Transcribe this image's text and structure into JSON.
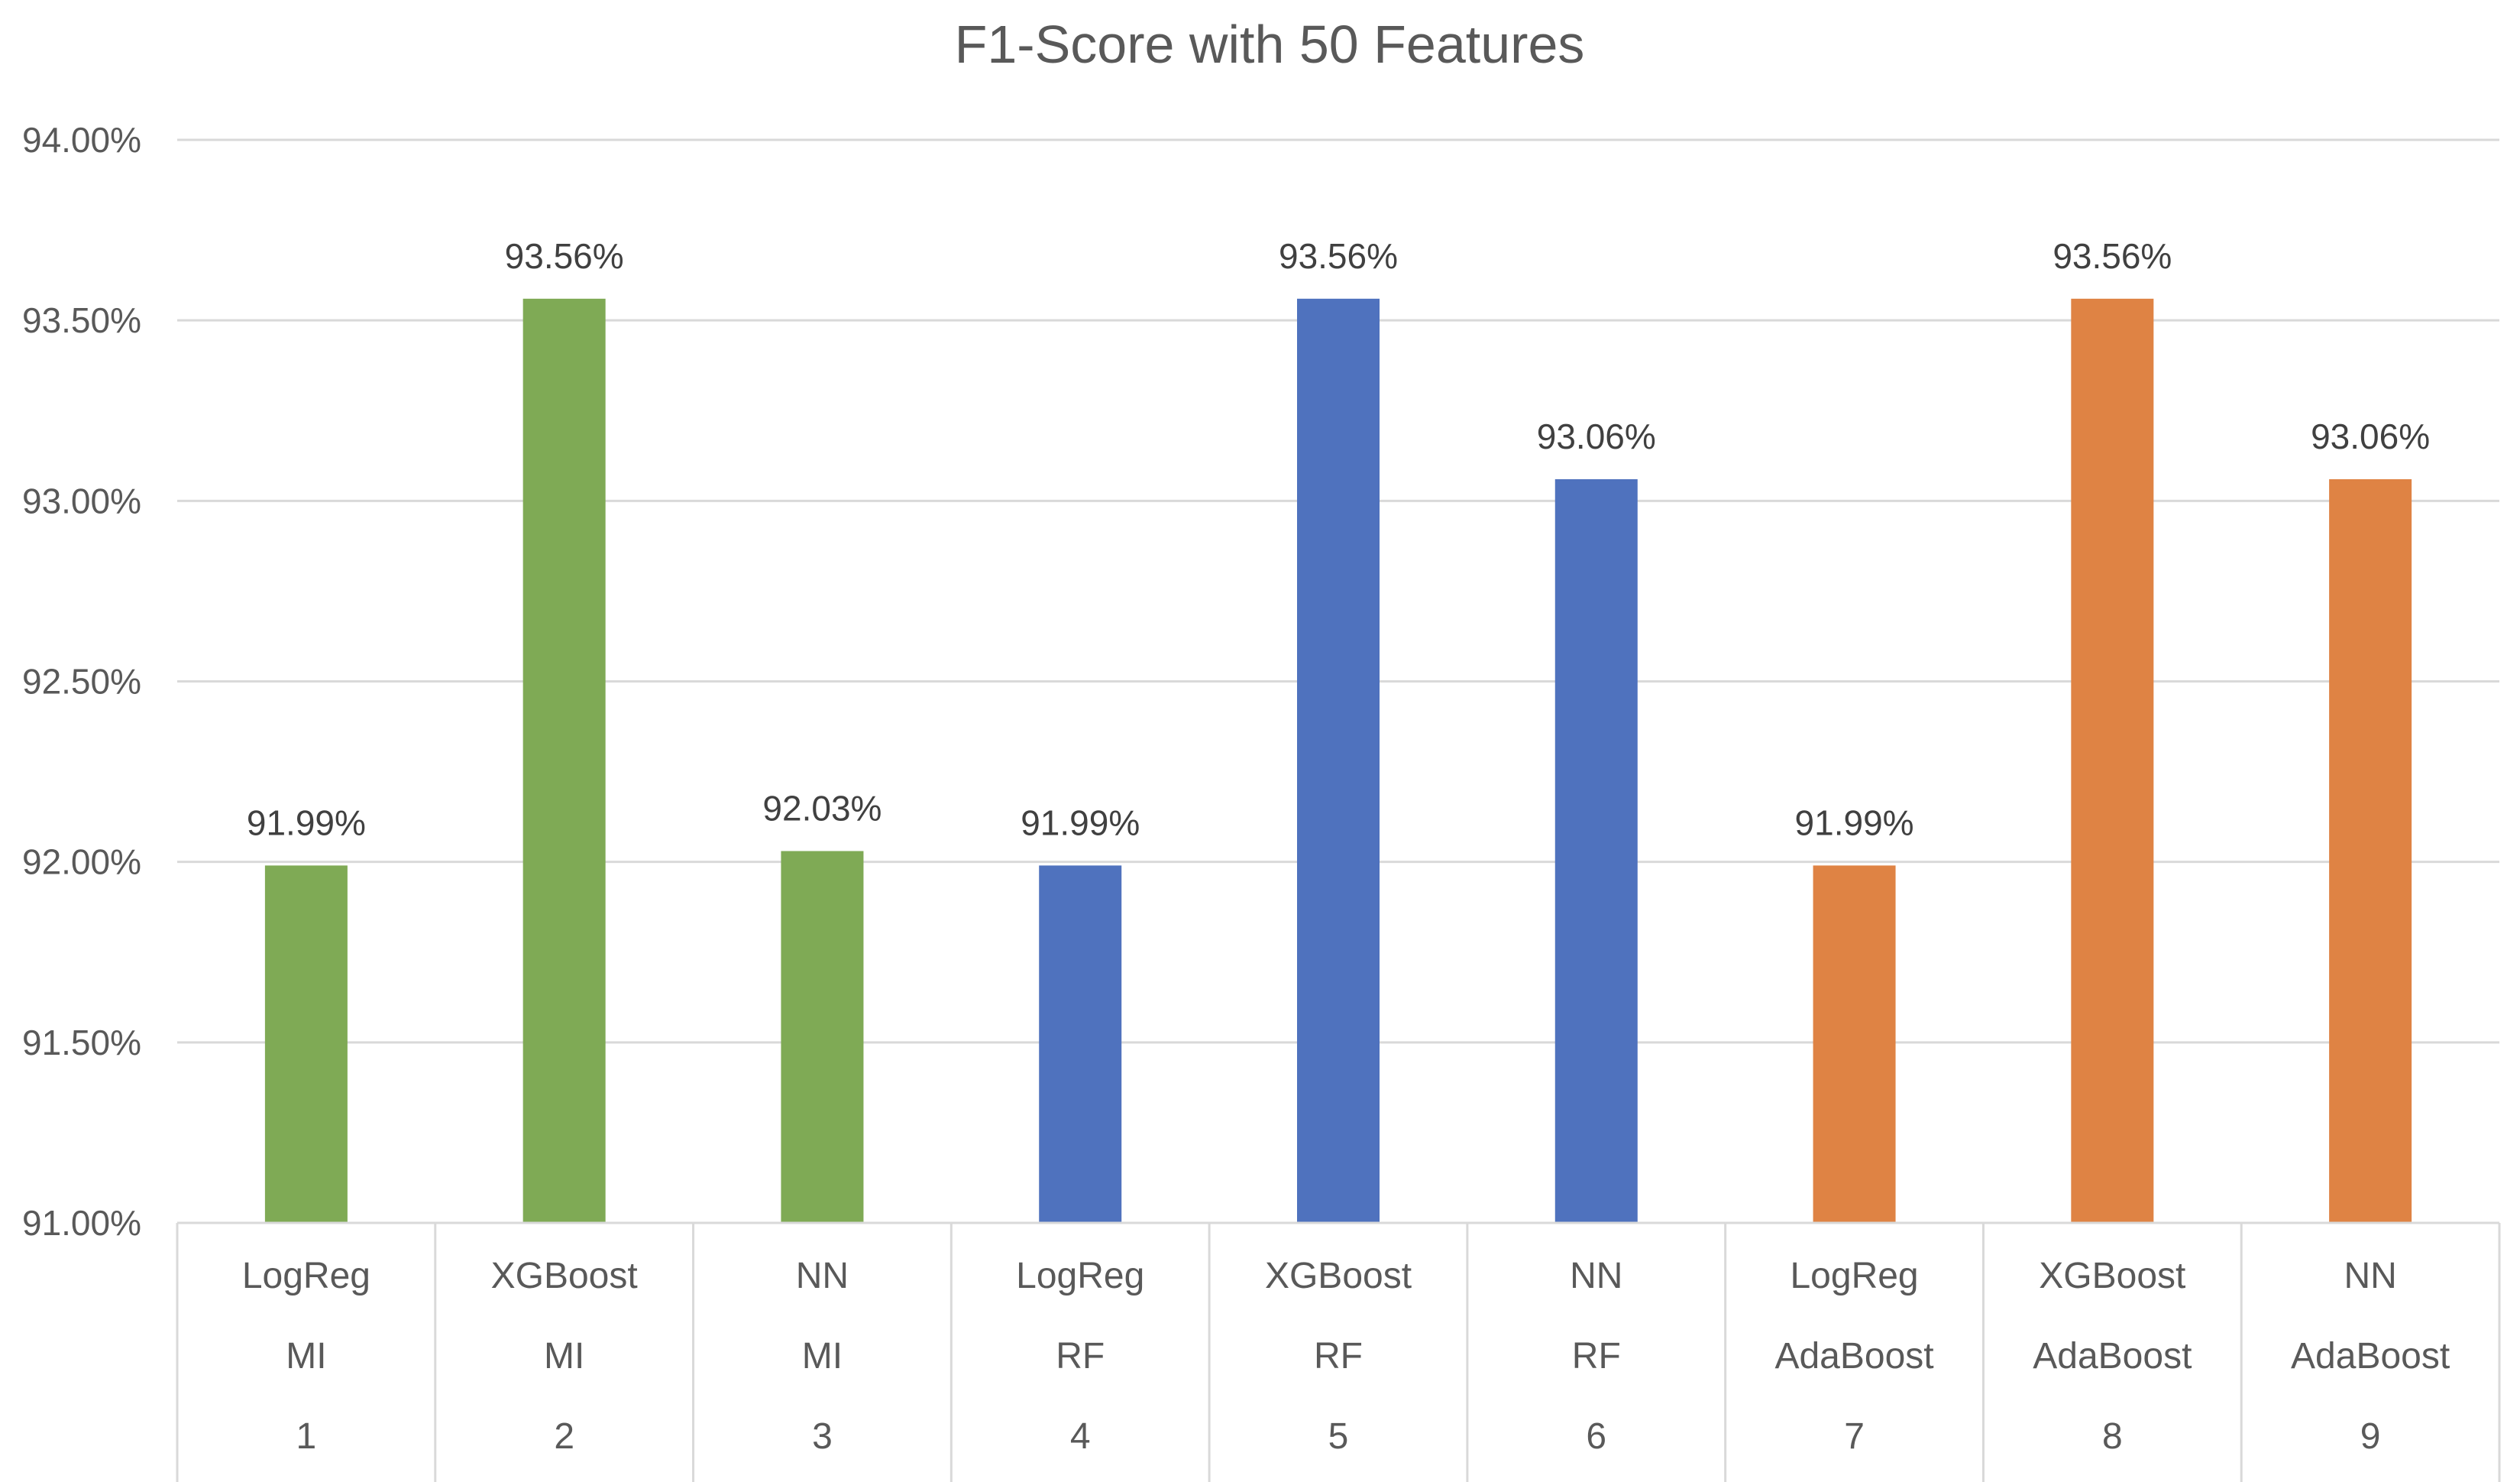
{
  "chart_data": {
    "type": "bar",
    "title": "F1-Score with 50 Features",
    "xlabel": "",
    "ylabel": "",
    "ylim": [
      91.0,
      94.0
    ],
    "yticks": [
      91.0,
      91.5,
      92.0,
      92.5,
      93.0,
      93.5,
      94.0
    ],
    "ytick_labels": [
      "91.00%",
      "91.50%",
      "92.00%",
      "92.50%",
      "93.00%",
      "93.50%",
      "94.00%"
    ],
    "grid": true,
    "legend": "none",
    "categories": [
      {
        "model": "LogReg",
        "selector": "MI",
        "index": "1"
      },
      {
        "model": "XGBoost",
        "selector": "MI",
        "index": "2"
      },
      {
        "model": "NN",
        "selector": "MI",
        "index": "3"
      },
      {
        "model": "LogReg",
        "selector": "RF",
        "index": "4"
      },
      {
        "model": "XGBoost",
        "selector": "RF",
        "index": "5"
      },
      {
        "model": "NN",
        "selector": "RF",
        "index": "6"
      },
      {
        "model": "LogReg",
        "selector": "AdaBoost",
        "index": "7"
      },
      {
        "model": "XGBoost",
        "selector": "AdaBoost",
        "index": "8"
      },
      {
        "model": "NN",
        "selector": "AdaBoost",
        "index": "9"
      }
    ],
    "values": [
      91.99,
      93.56,
      92.03,
      91.99,
      93.56,
      93.06,
      91.99,
      93.56,
      93.06
    ],
    "data_labels": [
      "91.99%",
      "93.56%",
      "92.03%",
      "91.99%",
      "93.56%",
      "93.06%",
      "91.99%",
      "93.56%",
      "93.06%"
    ],
    "bar_colors": [
      "#7faa55",
      "#7faa55",
      "#7faa55",
      "#4f72be",
      "#4f72be",
      "#4f72be",
      "#df8344",
      "#df8344",
      "#df8344"
    ]
  }
}
